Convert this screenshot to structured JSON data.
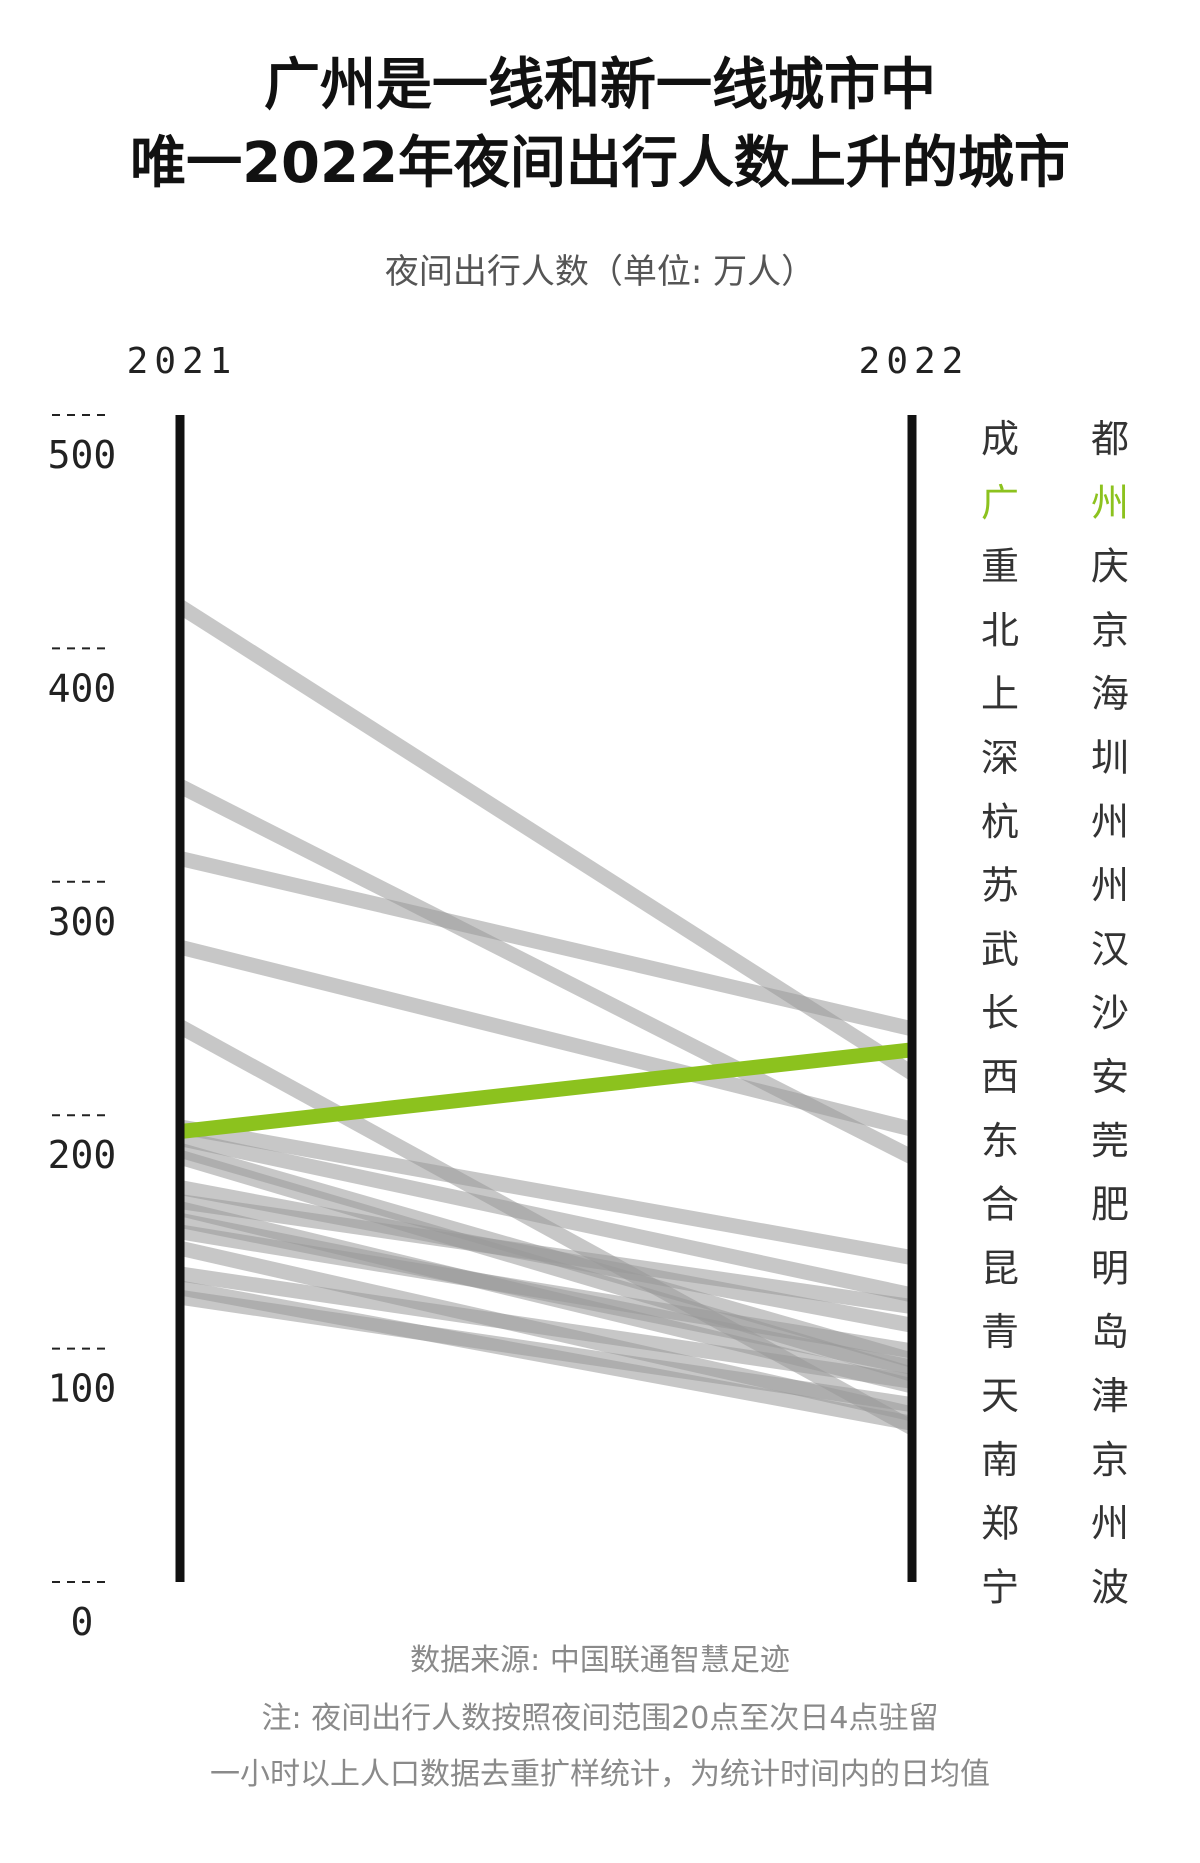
{
  "title_line1": "广州是一线和新一线城市中",
  "title_line2": "唯一2022年夜间出行人数上升的城市",
  "subtitle": "夜间出行人数（单位: 万人）",
  "footer": {
    "source": "数据来源: 中国联通智慧足迹",
    "note1": "注: 夜间出行人数按照夜间范围20点至次日4点驻留",
    "note2": "一小时以上人口数据去重扩样统计，为统计时间内的日均值"
  },
  "colors": {
    "highlight": "#8cc21e",
    "line": "#999999",
    "axis": "#111111",
    "label": "#333333"
  },
  "chart_data": {
    "type": "slope",
    "x": [
      "2021",
      "2022"
    ],
    "ylim": [
      0,
      500
    ],
    "yticks": [
      0,
      100,
      200,
      300,
      400,
      500
    ],
    "highlight": "广州",
    "series": [
      {
        "name": "成都",
        "values": [
          418,
          218
        ]
      },
      {
        "name": "广州",
        "values": [
          193,
          228
        ]
      },
      {
        "name": "重庆",
        "values": [
          341,
          182
        ]
      },
      {
        "name": "北京",
        "values": [
          310,
          237
        ]
      },
      {
        "name": "上海",
        "values": [
          272,
          194
        ]
      },
      {
        "name": "深圳",
        "values": [
          238,
          66
        ]
      },
      {
        "name": "杭州",
        "values": [
          195,
          139
        ]
      },
      {
        "name": "苏州",
        "values": [
          190,
          123
        ]
      },
      {
        "name": "武汉",
        "values": [
          182,
          89
        ]
      },
      {
        "name": "长沙",
        "values": [
          169,
          110
        ]
      },
      {
        "name": "西安",
        "values": [
          163,
          118
        ]
      },
      {
        "name": "东莞",
        "values": [
          160,
          84
        ]
      },
      {
        "name": "合肥",
        "values": [
          155,
          92
        ]
      },
      {
        "name": "昆明",
        "values": [
          150,
          99
        ]
      },
      {
        "name": "青岛",
        "values": [
          143,
          72
        ]
      },
      {
        "name": "天津",
        "values": [
          132,
          86
        ]
      },
      {
        "name": "南京",
        "values": [
          126,
          68
        ]
      },
      {
        "name": "郑州",
        "values": [
          122,
          76
        ]
      },
      {
        "name": "宁波",
        "values": [
          185,
          95
        ]
      }
    ],
    "labels_left": [
      "成",
      "广",
      "重",
      "北",
      "上",
      "深",
      "杭",
      "苏",
      "武",
      "长",
      "西",
      "东",
      "合",
      "昆",
      "青",
      "天",
      "南",
      "郑",
      "宁"
    ],
    "labels_right": [
      "都",
      "州",
      "庆",
      "京",
      "海",
      "圳",
      "州",
      "州",
      "汉",
      "沙",
      "安",
      "莞",
      "肥",
      "明",
      "岛",
      "津",
      "京",
      "州",
      "波"
    ]
  }
}
